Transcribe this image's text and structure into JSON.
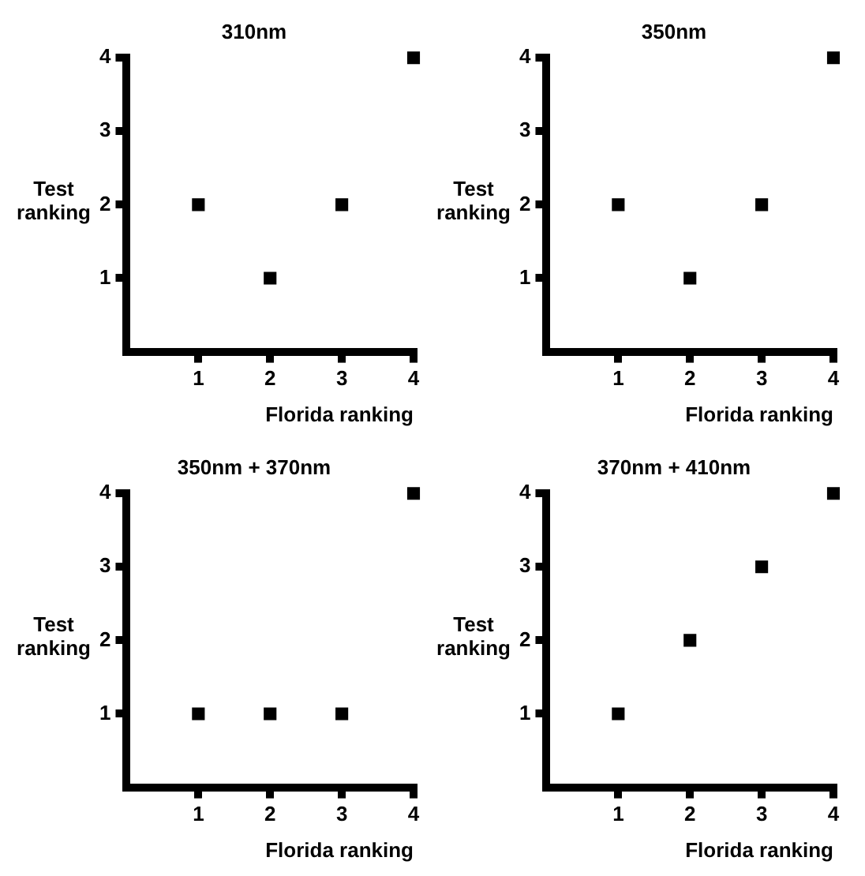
{
  "chart_data": [
    {
      "type": "scatter",
      "title": "310nm",
      "xlabel": "Florida ranking",
      "ylabel": "Test ranking",
      "x": [
        1,
        2,
        3,
        4
      ],
      "series": [
        {
          "color": "#000000",
          "values": [
            2,
            1,
            2,
            4
          ]
        }
      ],
      "xlim": [
        0,
        4
      ],
      "ylim": [
        0,
        4
      ],
      "xticks": [
        1,
        2,
        3,
        4
      ],
      "yticks": [
        1,
        2,
        3,
        4
      ],
      "marker": "square",
      "grid": false,
      "legend": false
    },
    {
      "type": "scatter",
      "title": "350nm",
      "xlabel": "Florida ranking",
      "ylabel": "Test ranking",
      "x": [
        1,
        2,
        3,
        4
      ],
      "series": [
        {
          "color": "#000000",
          "values": [
            2,
            1,
            2,
            4
          ]
        }
      ],
      "xlim": [
        0,
        4
      ],
      "ylim": [
        0,
        4
      ],
      "xticks": [
        1,
        2,
        3,
        4
      ],
      "yticks": [
        1,
        2,
        3,
        4
      ],
      "marker": "square",
      "grid": false,
      "legend": false
    },
    {
      "type": "scatter",
      "title": "350nm + 370nm",
      "xlabel": "Florida ranking",
      "ylabel": "Test ranking",
      "x": [
        1,
        2,
        3,
        4
      ],
      "series": [
        {
          "color": "#000000",
          "values": [
            1,
            1,
            1,
            4
          ]
        }
      ],
      "xlim": [
        0,
        4
      ],
      "ylim": [
        0,
        4
      ],
      "xticks": [
        1,
        2,
        3,
        4
      ],
      "yticks": [
        1,
        2,
        3,
        4
      ],
      "marker": "square",
      "grid": false,
      "legend": false
    },
    {
      "type": "scatter",
      "title": "370nm + 410nm",
      "xlabel": "Florida ranking",
      "ylabel": "Test ranking",
      "x": [
        1,
        2,
        3,
        4
      ],
      "series": [
        {
          "color": "#000000",
          "values": [
            1,
            2,
            3,
            4
          ]
        }
      ],
      "xlim": [
        0,
        4
      ],
      "ylim": [
        0,
        4
      ],
      "xticks": [
        1,
        2,
        3,
        4
      ],
      "yticks": [
        1,
        2,
        3,
        4
      ],
      "marker": "square",
      "grid": false,
      "legend": false
    }
  ]
}
